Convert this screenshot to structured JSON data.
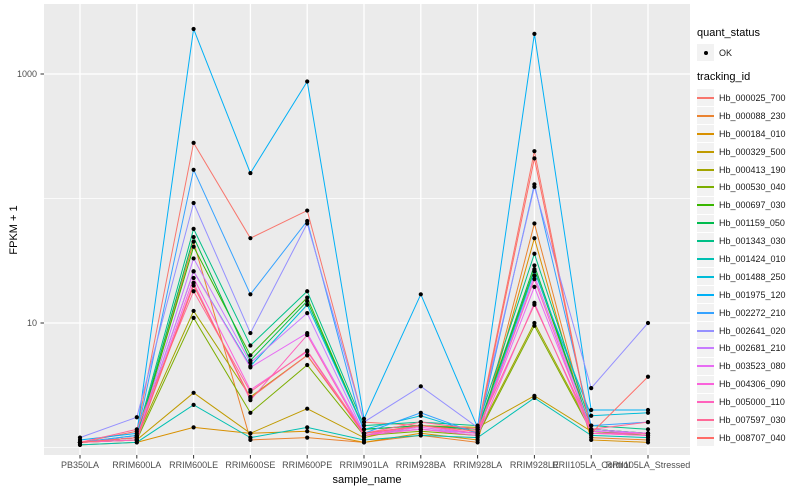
{
  "chart_data": {
    "type": "line",
    "xlabel": "sample_name",
    "ylabel": "FPKM + 1",
    "yscale": "log10",
    "ylim": [
      0.85,
      3500
    ],
    "ytick_labels": [
      "1000",
      "10"
    ],
    "ytick_values": [
      1000,
      10
    ],
    "grid_major_y": [
      10,
      1000
    ],
    "grid_minor_y": [
      1,
      100
    ],
    "grid": true,
    "legend_position": "right",
    "point_color": "#000000",
    "panel_background": "#EBEBEB",
    "grid_color": "#FFFFFF",
    "categories": [
      "PB350LA",
      "RRIM600LA",
      "RRIM600LE",
      "RRIM600SE",
      "RRIM600PE",
      "RRIM901LA",
      "RRIM928BA",
      "RRIM928LA",
      "RRIM928LE",
      "RRII105LA_Control",
      "RRII105LA_Stressed"
    ],
    "series": [
      {
        "name": "Hb_000025_700",
        "color": "#F8766D",
        "values": [
          1.1,
          1.35,
          280,
          48,
          80,
          1.6,
          1.5,
          1.4,
          240,
          1.3,
          1.25
        ]
      },
      {
        "name": "Hb_000088_230",
        "color": "#EA8331",
        "values": [
          1.1,
          1.15,
          45,
          1.15,
          1.2,
          1.1,
          1.25,
          1.1,
          63,
          1.2,
          1.15
        ]
      },
      {
        "name": "Hb_000184_010",
        "color": "#D89000",
        "values": [
          1.05,
          1.1,
          1.45,
          1.3,
          1.35,
          1.1,
          1.3,
          1.15,
          48,
          1.15,
          1.1
        ]
      },
      {
        "name": "Hb_000329_500",
        "color": "#C09B00",
        "values": [
          1.1,
          1.15,
          2.75,
          1.3,
          2.05,
          1.2,
          1.5,
          1.45,
          2.6,
          1.35,
          1.25
        ]
      },
      {
        "name": "Hb_000413_190",
        "color": "#A3A500",
        "values": [
          1.1,
          1.2,
          12.5,
          2.55,
          5.5,
          1.3,
          1.4,
          1.3,
          10,
          1.4,
          1.3
        ]
      },
      {
        "name": "Hb_000530_040",
        "color": "#7CAE00",
        "values": [
          1.1,
          1.15,
          11,
          1.9,
          4.6,
          1.25,
          1.35,
          1.25,
          9.5,
          1.35,
          1.25
        ]
      },
      {
        "name": "Hb_000697_030",
        "color": "#39B600",
        "values": [
          1.1,
          1.2,
          41,
          5.5,
          16,
          1.4,
          1.5,
          1.4,
          27,
          1.4,
          1.3
        ]
      },
      {
        "name": "Hb_001159_050",
        "color": "#00BB4E",
        "values": [
          1.1,
          1.2,
          49,
          5.0,
          15,
          1.4,
          1.5,
          1.4,
          29,
          1.4,
          1.3
        ]
      },
      {
        "name": "Hb_001343_030",
        "color": "#00C087",
        "values": [
          1.1,
          1.25,
          57,
          6.6,
          18,
          1.5,
          1.6,
          1.5,
          36,
          1.5,
          1.4
        ]
      },
      {
        "name": "Hb_001424_010",
        "color": "#00C0B2",
        "values": [
          1.05,
          1.1,
          2.2,
          1.2,
          1.45,
          1.15,
          1.25,
          1.2,
          2.5,
          1.25,
          1.2
        ]
      },
      {
        "name": "Hb_001488_250",
        "color": "#00BCD8",
        "values": [
          1.1,
          1.2,
          26,
          4.5,
          14,
          1.4,
          1.8,
          1.3,
          26,
          1.8,
          1.9
        ]
      },
      {
        "name": "Hb_001975_120",
        "color": "#00B0F6",
        "values": [
          1.15,
          1.3,
          2300,
          160,
          870,
          1.7,
          17,
          1.45,
          2100,
          2.0,
          2.0
        ]
      },
      {
        "name": "Hb_002272_210",
        "color": "#35A2FF",
        "values": [
          1.1,
          1.25,
          170,
          17,
          66,
          1.3,
          1.9,
          1.3,
          130,
          1.5,
          1.6
        ]
      },
      {
        "name": "Hb_002641_020",
        "color": "#9590FF",
        "values": [
          1.2,
          1.75,
          92,
          8.3,
          63,
          1.6,
          3.1,
          1.45,
          124,
          3.0,
          10
        ]
      },
      {
        "name": "Hb_002681_210",
        "color": "#C77CFF",
        "values": [
          1.1,
          1.2,
          33,
          4.8,
          12,
          1.3,
          1.4,
          1.3,
          24,
          1.4,
          1.3
        ]
      },
      {
        "name": "Hb_003523_080",
        "color": "#E76BF3",
        "values": [
          1.1,
          1.2,
          26,
          4.4,
          8.3,
          1.3,
          1.45,
          1.3,
          19.5,
          1.35,
          1.3
        ]
      },
      {
        "name": "Hb_004306_090",
        "color": "#FA62DB",
        "values": [
          1.1,
          1.15,
          23,
          2.9,
          5.9,
          1.25,
          1.4,
          1.25,
          14.5,
          1.3,
          1.25
        ]
      },
      {
        "name": "Hb_005000_110",
        "color": "#FF62BC",
        "values": [
          1.1,
          1.15,
          21,
          2.4,
          8.0,
          1.25,
          1.5,
          1.3,
          22.5,
          1.3,
          1.3
        ]
      },
      {
        "name": "Hb_007597_030",
        "color": "#FF6A98",
        "values": [
          1.1,
          1.4,
          18,
          2.8,
          6.0,
          1.3,
          1.6,
          1.4,
          14,
          1.4,
          1.6
        ]
      },
      {
        "name": "Hb_008707_040",
        "color": "#FF6C67",
        "values": [
          1.1,
          1.2,
          20,
          2.5,
          5.5,
          1.3,
          1.5,
          1.35,
          210,
          1.3,
          3.7
        ]
      }
    ]
  },
  "legend": {
    "quant_status_title": "quant_status",
    "quant_status_items": [
      {
        "label": "OK",
        "symbol": "point"
      }
    ],
    "tracking_title": "tracking_id"
  }
}
